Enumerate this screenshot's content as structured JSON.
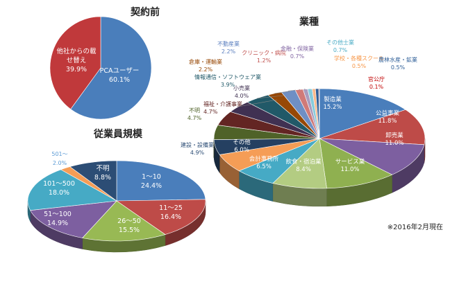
{
  "note": "※2016年2月現在",
  "chart_data": [
    {
      "id": "contract",
      "type": "pie",
      "title": "契約前",
      "series": [
        {
          "name": "PCAユーザー",
          "value": 60.1,
          "label_lines": [
            "PCAユーザー",
            "60.1%"
          ],
          "color": "#4a7ebb"
        },
        {
          "name": "他社からの載せ替え",
          "value": 39.9,
          "label_lines": [
            "他社からの載",
            "せ替え",
            "39.9%"
          ],
          "color": "#c0393b"
        }
      ]
    },
    {
      "id": "employees",
      "type": "pie",
      "title": "従業員規模",
      "series": [
        {
          "name": "1～10",
          "value": 24.4,
          "label_lines": [
            "1～10",
            "24.4%"
          ],
          "color": "#4a7ebb"
        },
        {
          "name": "11～25",
          "value": 16.4,
          "label_lines": [
            "11～25",
            "16.4%"
          ],
          "color": "#be4b48"
        },
        {
          "name": "26～50",
          "value": 15.5,
          "label_lines": [
            "26～50",
            "15.5%"
          ],
          "color": "#98b954"
        },
        {
          "name": "51～100",
          "value": 14.9,
          "label_lines": [
            "51～100",
            "14.9%"
          ],
          "color": "#7d5fa0"
        },
        {
          "name": "101～500",
          "value": 18.0,
          "label_lines": [
            "101～500",
            "18.0%"
          ],
          "color": "#46aac5"
        },
        {
          "name": "501～",
          "value": 2.0,
          "label_lines": [
            "501～",
            "2.0%"
          ],
          "color": "#f59d56"
        },
        {
          "name": "不明",
          "value": 8.8,
          "label_lines": [
            "不明",
            "8.8%"
          ],
          "color": "#2c4d75"
        }
      ]
    },
    {
      "id": "industry",
      "type": "pie",
      "title": "業種",
      "series": [
        {
          "name": "製造業",
          "value": 15.2,
          "label_lines": [
            "製造業",
            "15.2%"
          ],
          "color": "#4a7ebb"
        },
        {
          "name": "公益事業",
          "value": 11.8,
          "label_lines": [
            "公益事業",
            "11.8%"
          ],
          "color": "#be4b48"
        },
        {
          "name": "卸売業",
          "value": 11.0,
          "label_lines": [
            "卸売業",
            "11.0%"
          ],
          "color": "#7d5fa0"
        },
        {
          "name": "サービス業",
          "value": 11.0,
          "label_lines": [
            "サービス業",
            "11.0%"
          ],
          "color": "#8fb050"
        },
        {
          "name": "飲食・宿泊業",
          "value": 8.4,
          "label_lines": [
            "飲食・宿泊業",
            "8.4%"
          ],
          "color": "#b3cc82"
        },
        {
          "name": "会計事務所",
          "value": 6.5,
          "label_lines": [
            "会計事務所",
            "6.5%"
          ],
          "color": "#46aac5"
        },
        {
          "name": "その他",
          "value": 6.0,
          "label_lines": [
            "その他",
            "6.0%"
          ],
          "color": "#f59d56"
        },
        {
          "name": "建設・設備業",
          "value": 4.9,
          "label_lines": [
            "建設・設備業",
            "4.9%"
          ],
          "color": "#254061"
        },
        {
          "name": "不明",
          "value": 4.7,
          "label_lines": [
            "不明",
            "4.7%"
          ],
          "color": "#4f6228"
        },
        {
          "name": "福祉・介護事業",
          "value": 4.7,
          "label_lines": [
            "福祉・介護事業",
            "4.7%"
          ],
          "color": "#632523"
        },
        {
          "name": "小売業",
          "value": 4.0,
          "label_lines": [
            "小売業",
            "4.0%"
          ],
          "color": "#403152"
        },
        {
          "name": "情報通信・ソフトウェア業",
          "value": 3.9,
          "label_lines": [
            "情報通信・ソフトウェア業",
            "3.9%"
          ],
          "color": "#215968"
        },
        {
          "name": "倉庫・運輸業",
          "value": 2.2,
          "label_lines": [
            "倉庫・運輸業",
            "2.2%"
          ],
          "color": "#974806"
        },
        {
          "name": "不動産業",
          "value": 2.2,
          "label_lines": [
            "不動産業",
            "2.2%"
          ],
          "color": "#6f8fc4"
        },
        {
          "name": "クリニック・病院",
          "value": 1.2,
          "label_lines": [
            "クリニック・病院",
            "1.2%"
          ],
          "color": "#d07a78"
        },
        {
          "name": "金融・保険業",
          "value": 0.7,
          "label_lines": [
            "金融・保険業",
            "0.7%"
          ],
          "color": "#a99bbd"
        },
        {
          "name": "その他士業",
          "value": 0.7,
          "label_lines": [
            "その他士業",
            "0.7%"
          ],
          "color": "#86cbdc"
        },
        {
          "name": "学校・各種スクール",
          "value": 0.5,
          "label_lines": [
            "学校・各種スクール",
            "0.5%"
          ],
          "color": "#fab88a"
        },
        {
          "name": "農林水産・鉱業",
          "value": 0.5,
          "label_lines": [
            "農林水産・鉱業",
            "0.5%"
          ],
          "color": "#2f5f98"
        },
        {
          "name": "官公庁",
          "value": 0.1,
          "label_lines": [
            "官公庁",
            "0.1%"
          ],
          "color": "#a52a2a"
        }
      ]
    }
  ]
}
